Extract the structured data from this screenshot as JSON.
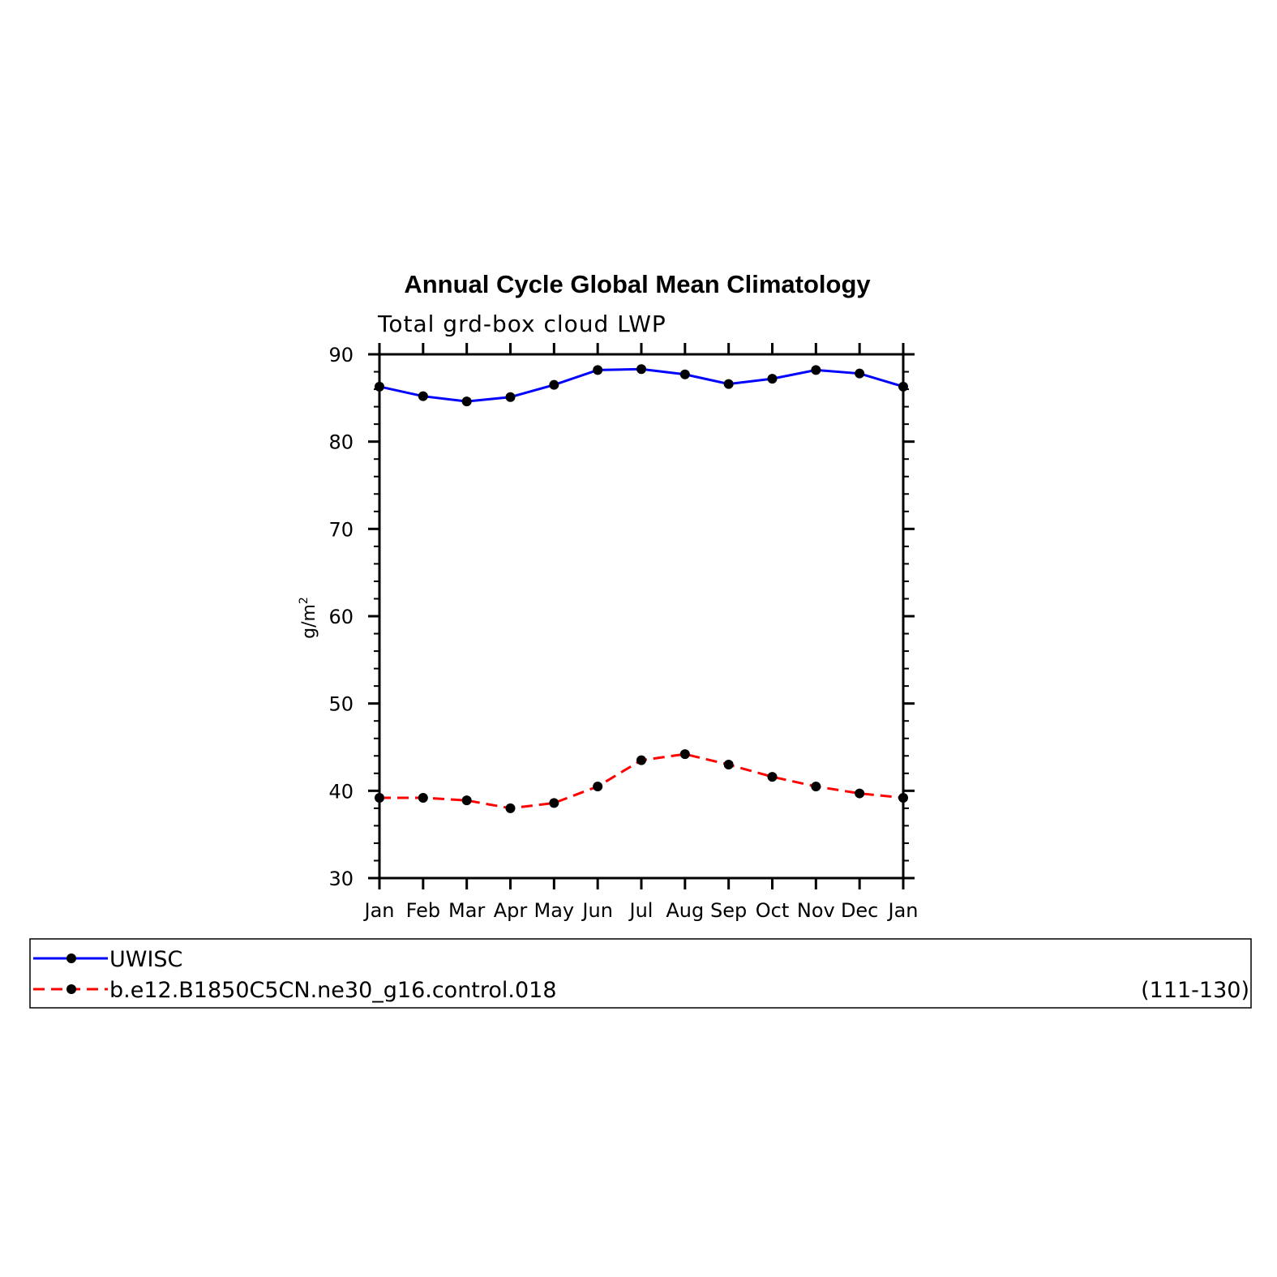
{
  "chart_data": {
    "type": "line",
    "title": "Annual Cycle Global Mean Climatology",
    "subtitle": "Total grd-box cloud LWP",
    "ylabel": "g/m",
    "ylabel_superscript": "2",
    "ylim": [
      30,
      90
    ],
    "yticks": [
      30,
      40,
      50,
      60,
      70,
      80,
      90
    ],
    "categories": [
      "Jan",
      "Feb",
      "Mar",
      "Apr",
      "May",
      "Jun",
      "Jul",
      "Aug",
      "Sep",
      "Oct",
      "Nov",
      "Dec",
      "Jan"
    ],
    "grid": false,
    "legend_position": "bottom",
    "series": [
      {
        "name": "UWISC",
        "color": "#0000ff",
        "line_style": "solid",
        "values": [
          86.3,
          85.2,
          84.6,
          85.1,
          86.5,
          88.2,
          88.3,
          87.7,
          86.6,
          87.2,
          88.2,
          87.8,
          86.3
        ]
      },
      {
        "name": "b.e12.B1850C5CN.ne30_g16.control.018",
        "color": "#ff0000",
        "line_style": "dashed",
        "values": [
          39.2,
          39.2,
          38.9,
          38.0,
          38.6,
          40.5,
          43.5,
          44.2,
          43.0,
          41.6,
          40.5,
          39.7,
          39.2
        ]
      }
    ],
    "legend_note": "(111-130)"
  }
}
